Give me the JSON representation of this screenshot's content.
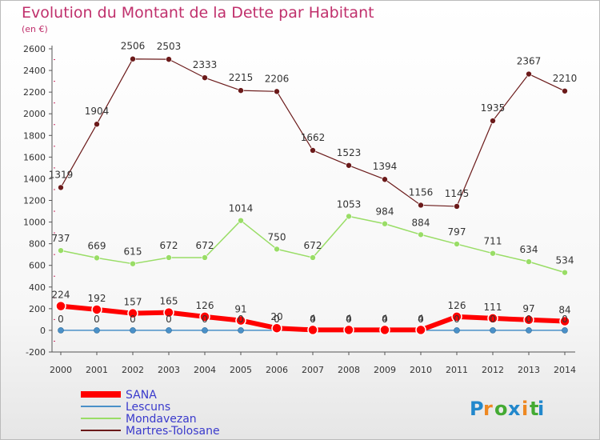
{
  "chart_data": {
    "type": "line",
    "title": "Evolution du Montant de la Dette par Habitant",
    "subtitle": "(en €)",
    "xlabel": "",
    "ylabel": "",
    "ylim": [
      -200,
      2600
    ],
    "ytick_step": 200,
    "grid": false,
    "legend_position": "bottom-left",
    "categories": [
      "2000",
      "2001",
      "2002",
      "2003",
      "2004",
      "2005",
      "2006",
      "2007",
      "2008",
      "2009",
      "2010",
      "2011",
      "2012",
      "2013",
      "2014"
    ],
    "series": [
      {
        "name": "SANA",
        "color": "#ff0000",
        "values": [
          224,
          192,
          157,
          165,
          126,
          91,
          20,
          4,
          4,
          4,
          4,
          126,
          111,
          97,
          84
        ]
      },
      {
        "name": "Lescuns",
        "color": "#4a90c8",
        "values": [
          0,
          0,
          0,
          0,
          0,
          0,
          0,
          0,
          0,
          0,
          0,
          0,
          0,
          0,
          0
        ]
      },
      {
        "name": "Mondavezan",
        "color": "#99dd66",
        "values": [
          737,
          669,
          615,
          672,
          672,
          1014,
          750,
          672,
          1053,
          984,
          884,
          797,
          711,
          634,
          534
        ]
      },
      {
        "name": "Martres-Tolosane",
        "color": "#6b1a1a",
        "values": [
          1319,
          1904,
          2506,
          2503,
          2333,
          2215,
          2206,
          1662,
          1523,
          1394,
          1156,
          1145,
          1935,
          2367,
          2210
        ]
      }
    ]
  },
  "brand": {
    "letters": [
      "P",
      "r",
      "o",
      "x",
      "i",
      "t",
      "i"
    ],
    "colors": [
      "#2288cc",
      "#ee8822",
      "#44aa33",
      "#2288cc",
      "#ee8822",
      "#44aa33",
      "#2288cc"
    ]
  }
}
